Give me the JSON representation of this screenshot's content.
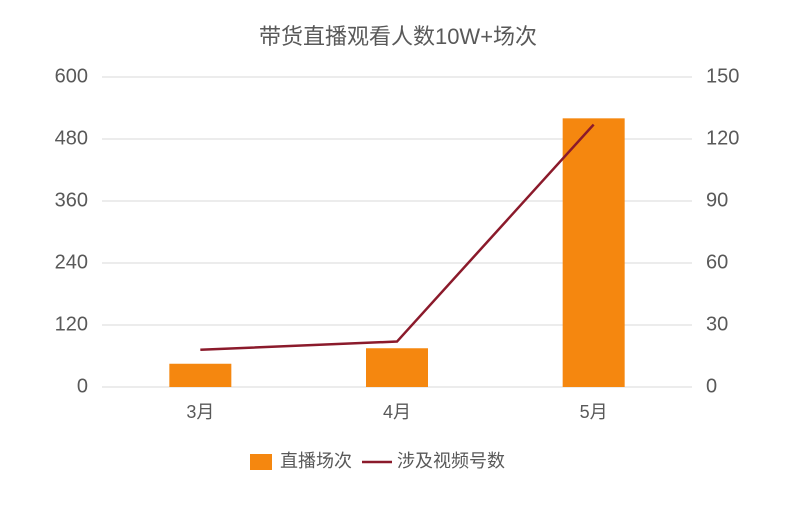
{
  "chart_data": {
    "type": "bar",
    "title": "带货直播观看人数10W+场次",
    "categories": [
      "3月",
      "4月",
      "5月"
    ],
    "series": [
      {
        "name": "直播场次",
        "type": "bar",
        "color": "#f5870f",
        "values": [
          45,
          75,
          520
        ]
      },
      {
        "name": "涉及视频号数",
        "type": "line",
        "axis": "y2",
        "color": "#8b1a2b",
        "values": [
          18,
          22,
          127
        ]
      }
    ],
    "ylim": [
      0,
      600
    ],
    "yticks": [
      0,
      120,
      240,
      360,
      480,
      600
    ],
    "y2lim": [
      0,
      150
    ],
    "y2ticks": [
      0,
      30,
      60,
      90,
      120,
      150
    ],
    "grid": true,
    "legend": "bottom"
  }
}
